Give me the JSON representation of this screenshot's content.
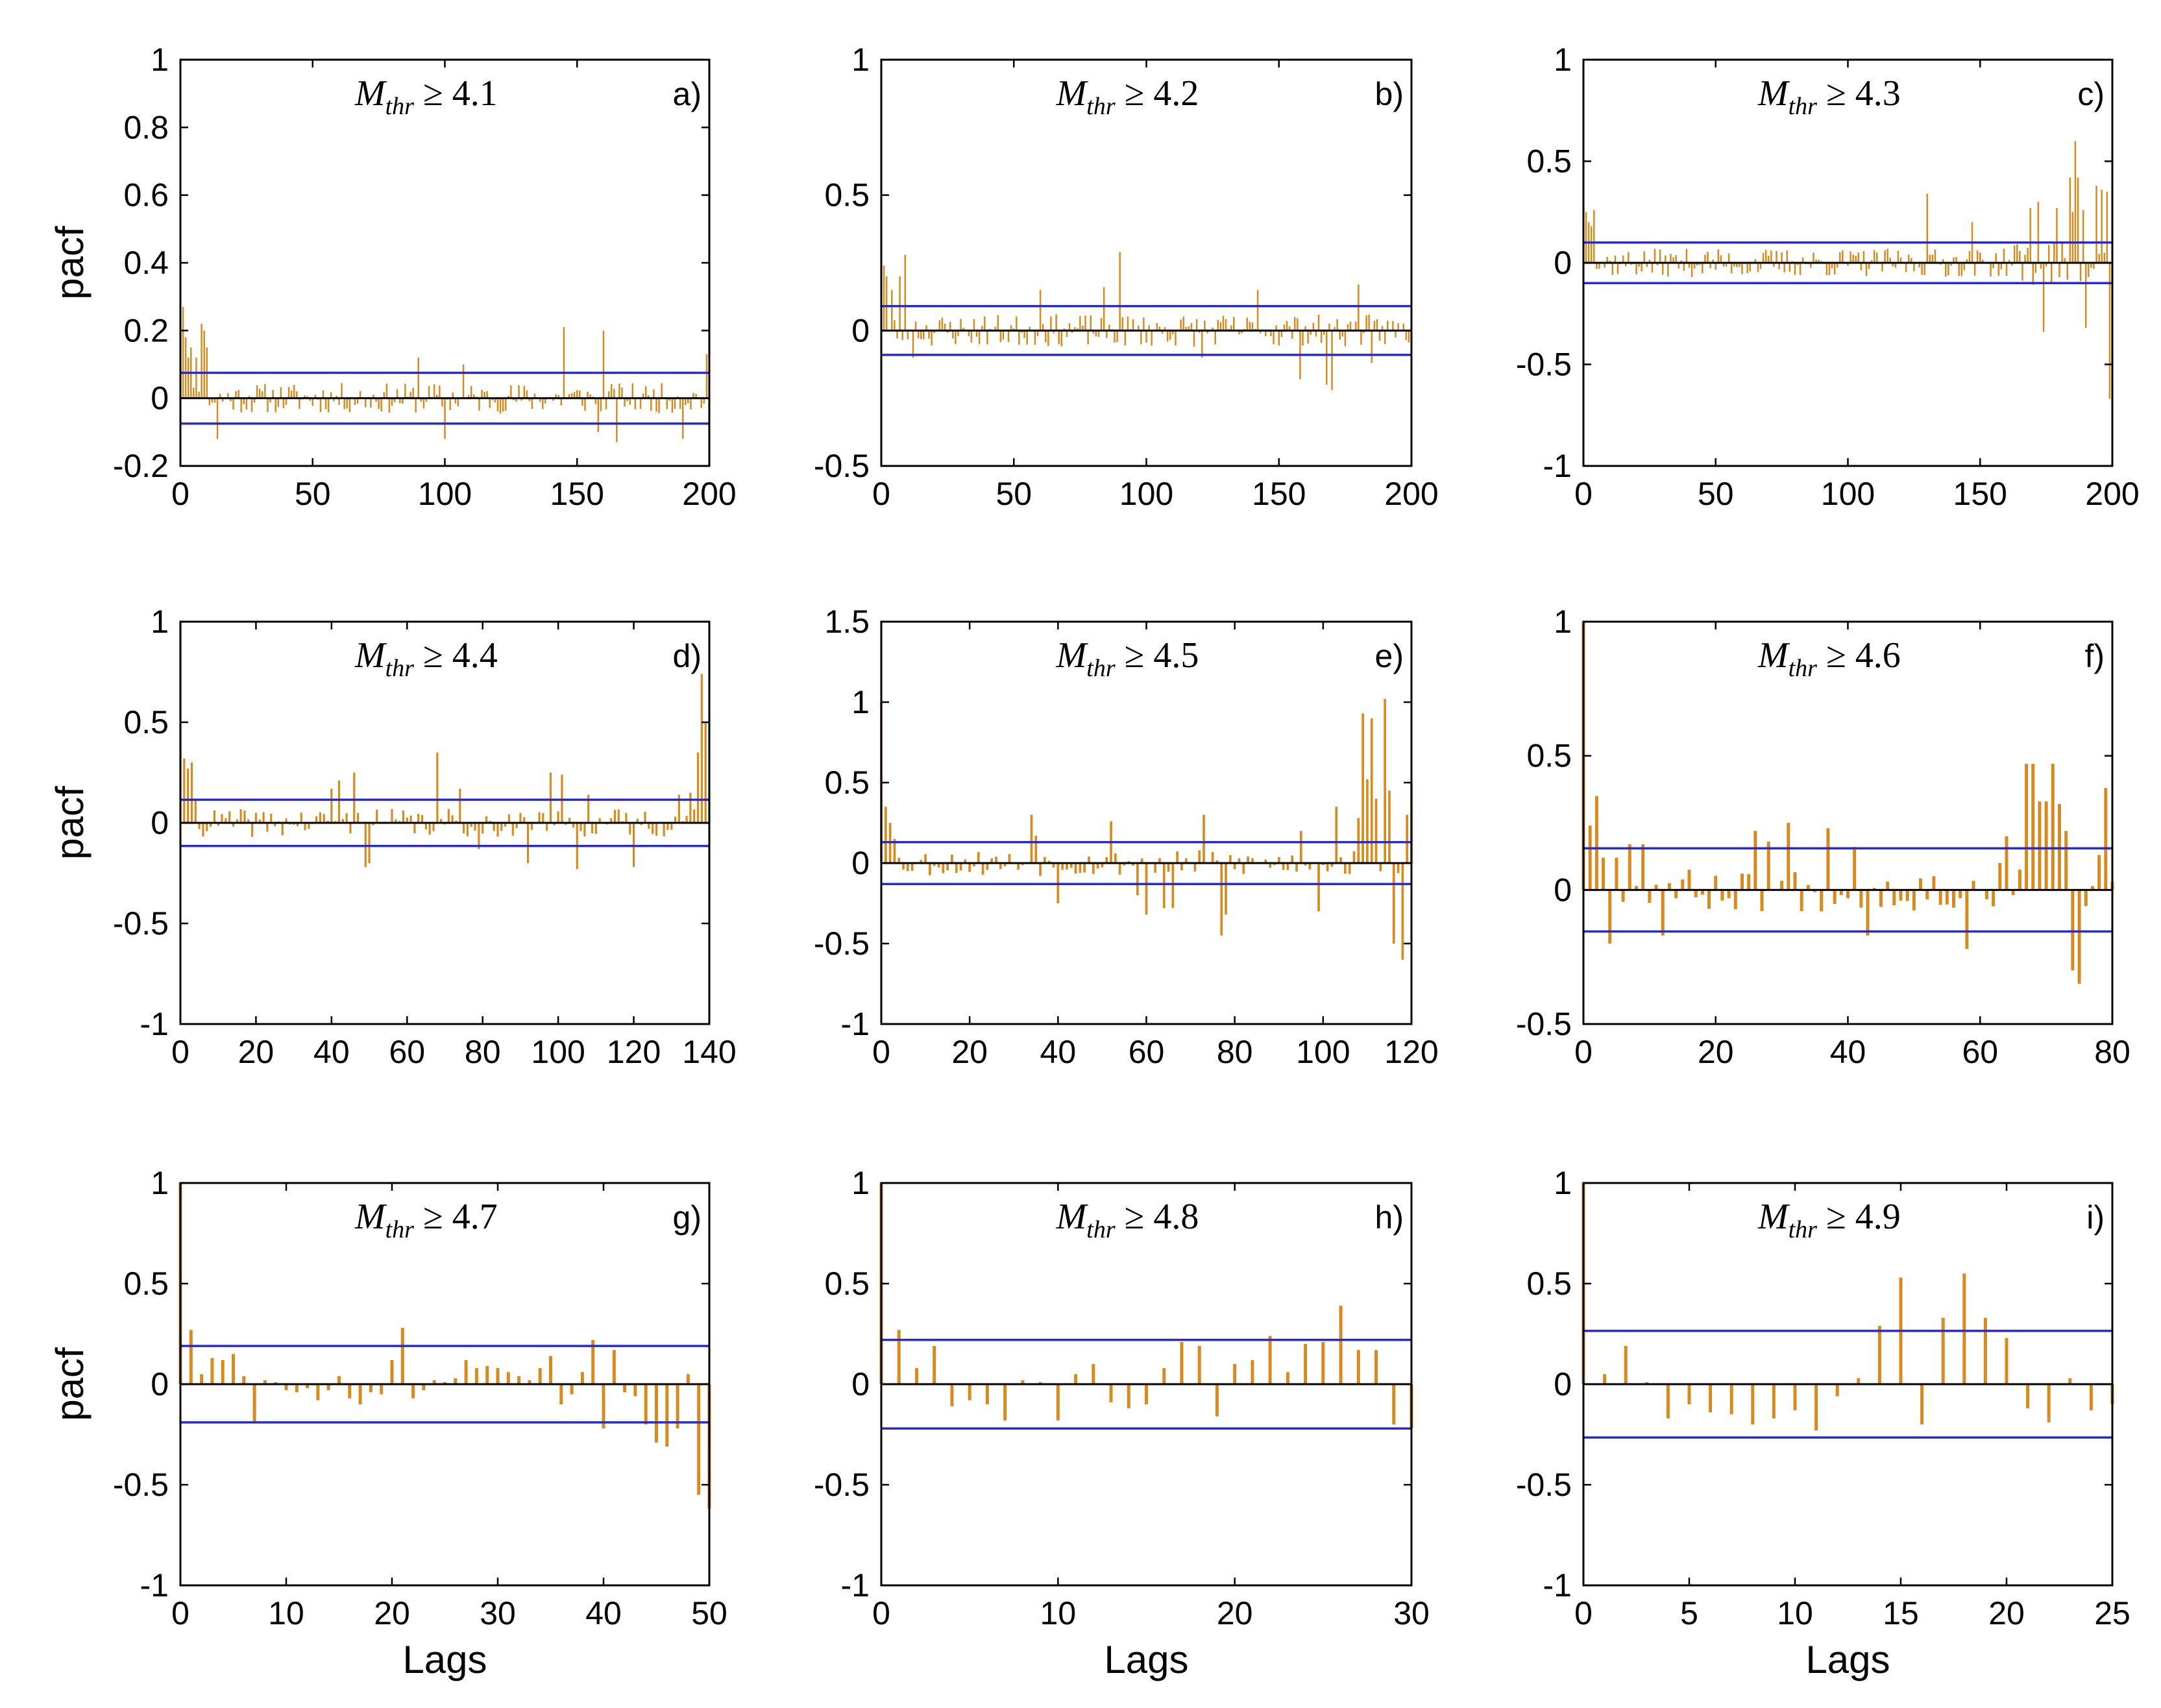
{
  "colors": {
    "bar": "#d98a1e",
    "conf": "#2a2acc",
    "axis": "#000000",
    "zero": "#000000"
  },
  "chart_data": [
    {
      "type": "bar",
      "panel": "a)",
      "title": "M_thr ≥ 4.1",
      "title_sym": "M",
      "title_sub": "thr",
      "title_rest": " ≥ 4.1",
      "ylabel": "pacf",
      "xlabel": "",
      "xlim": [
        0,
        200
      ],
      "ylim": [
        -0.2,
        1
      ],
      "xticks": [
        0,
        50,
        100,
        150,
        200
      ],
      "yticks": [
        -0.2,
        0,
        0.2,
        0.4,
        0.6,
        0.8,
        1
      ],
      "ytick_labels": [
        "-0.2",
        "0",
        "0.2",
        "0.4",
        "0.6",
        "0.8",
        "1"
      ],
      "conf": 0.075,
      "n": 200,
      "seed": 11,
      "amp": 0.045,
      "late": 0,
      "spikes": [
        [
          0,
          1
        ],
        [
          1,
          0.27
        ],
        [
          2,
          0.18
        ],
        [
          3,
          0.12
        ],
        [
          4,
          0.15
        ],
        [
          6,
          0.12
        ],
        [
          8,
          0.22
        ],
        [
          9,
          0.2
        ],
        [
          10,
          0.15
        ],
        [
          14,
          -0.12
        ],
        [
          90,
          0.12
        ],
        [
          100,
          -0.12
        ],
        [
          107,
          0.1
        ],
        [
          145,
          0.21
        ],
        [
          160,
          0.2
        ],
        [
          158,
          -0.1
        ],
        [
          165,
          -0.13
        ],
        [
          190,
          -0.12
        ],
        [
          199,
          0.13
        ]
      ]
    },
    {
      "type": "bar",
      "panel": "b)",
      "title": "M_thr ≥ 4.2",
      "title_sym": "M",
      "title_sub": "thr",
      "title_rest": " ≥ 4.2",
      "ylabel": "",
      "xlabel": "",
      "xlim": [
        0,
        200
      ],
      "ylim": [
        -0.5,
        1
      ],
      "xticks": [
        0,
        50,
        100,
        150,
        200
      ],
      "yticks": [
        -0.5,
        0,
        0.5,
        1
      ],
      "ytick_labels": [
        "-0.5",
        "0",
        "0.5",
        "1"
      ],
      "conf": 0.09,
      "n": 200,
      "seed": 23,
      "amp": 0.06,
      "late": 0,
      "spikes": [
        [
          0,
          1
        ],
        [
          1,
          0.24
        ],
        [
          2,
          0.2
        ],
        [
          4,
          0.15
        ],
        [
          7,
          0.2
        ],
        [
          9,
          0.28
        ],
        [
          12,
          -0.1
        ],
        [
          60,
          0.15
        ],
        [
          84,
          0.16
        ],
        [
          90,
          0.29
        ],
        [
          121,
          -0.1
        ],
        [
          142,
          0.15
        ],
        [
          158,
          -0.18
        ],
        [
          168,
          -0.2
        ],
        [
          170,
          -0.22
        ],
        [
          180,
          0.17
        ],
        [
          185,
          -0.12
        ]
      ]
    },
    {
      "type": "bar",
      "panel": "c)",
      "title": "M_thr ≥ 4.3",
      "title_sym": "M",
      "title_sub": "thr",
      "title_rest": " ≥ 4.3",
      "ylabel": "",
      "xlabel": "",
      "xlim": [
        0,
        200
      ],
      "ylim": [
        -1,
        1
      ],
      "xticks": [
        0,
        50,
        100,
        150,
        200
      ],
      "yticks": [
        -1,
        -0.5,
        0,
        0.5,
        1
      ],
      "ytick_labels": [
        "-1",
        "-0.5",
        "0",
        "0.5",
        "1"
      ],
      "conf": 0.1,
      "n": 200,
      "seed": 37,
      "amp": 0.07,
      "late": 1,
      "spikes": [
        [
          0,
          1
        ],
        [
          1,
          0.25
        ],
        [
          2,
          0.2
        ],
        [
          3,
          0.18
        ],
        [
          4,
          0.26
        ],
        [
          130,
          0.34
        ],
        [
          147,
          0.2
        ],
        [
          169,
          0.27
        ],
        [
          172,
          0.3
        ],
        [
          174,
          -0.34
        ],
        [
          179,
          0.27
        ],
        [
          184,
          0.42
        ],
        [
          185,
          0.25
        ],
        [
          186,
          0.6
        ],
        [
          187,
          0.42
        ],
        [
          189,
          0.26
        ],
        [
          190,
          -0.32
        ],
        [
          194,
          0.38
        ],
        [
          196,
          0.36
        ],
        [
          198,
          0.35
        ],
        [
          199,
          -0.67
        ],
        [
          200,
          0.26
        ]
      ]
    },
    {
      "type": "bar",
      "panel": "d)",
      "title": "M_thr ≥ 4.4",
      "title_sym": "M",
      "title_sub": "thr",
      "title_rest": " ≥ 4.4",
      "ylabel": "pacf",
      "xlabel": "",
      "xlim": [
        0,
        140
      ],
      "ylim": [
        -1,
        1
      ],
      "xticks": [
        0,
        20,
        40,
        60,
        80,
        100,
        120,
        140
      ],
      "yticks": [
        -1,
        -0.5,
        0,
        0.5,
        1
      ],
      "ytick_labels": [
        "-1",
        "-0.5",
        "0",
        "0.5",
        "1"
      ],
      "conf": 0.115,
      "n": 140,
      "seed": 41,
      "amp": 0.07,
      "late": 0,
      "spikes": [
        [
          0,
          1
        ],
        [
          1,
          0.32
        ],
        [
          2,
          0.27
        ],
        [
          3,
          0.3
        ],
        [
          4,
          0.12
        ],
        [
          40,
          0.17
        ],
        [
          42,
          0.21
        ],
        [
          46,
          0.25
        ],
        [
          49,
          -0.22
        ],
        [
          50,
          -0.2
        ],
        [
          68,
          0.35
        ],
        [
          74,
          0.17
        ],
        [
          79,
          -0.13
        ],
        [
          92,
          -0.2
        ],
        [
          98,
          0.25
        ],
        [
          101,
          0.24
        ],
        [
          105,
          -0.23
        ],
        [
          108,
          0.14
        ],
        [
          120,
          -0.22
        ],
        [
          132,
          0.14
        ],
        [
          135,
          0.15
        ],
        [
          137,
          0.35
        ],
        [
          138,
          0.74
        ],
        [
          139,
          0.5
        ],
        [
          140,
          0.15
        ]
      ]
    },
    {
      "type": "bar",
      "panel": "e)",
      "title": "M_thr ≥ 4.5",
      "title_sym": "M",
      "title_sub": "thr",
      "title_rest": " ≥ 4.5",
      "ylabel": "",
      "xlabel": "",
      "xlim": [
        0,
        120
      ],
      "ylim": [
        -1,
        1.5
      ],
      "xticks": [
        0,
        20,
        40,
        60,
        80,
        100,
        120
      ],
      "yticks": [
        -1,
        -0.5,
        0,
        0.5,
        1,
        1.5
      ],
      "ytick_labels": [
        "-1",
        "-0.5",
        "0",
        "0.5",
        "1",
        "1.5"
      ],
      "conf": 0.13,
      "n": 120,
      "seed": 53,
      "amp": 0.08,
      "late": 0,
      "spikes": [
        [
          0,
          1
        ],
        [
          1,
          0.35
        ],
        [
          2,
          0.25
        ],
        [
          3,
          0.15
        ],
        [
          34,
          0.3
        ],
        [
          35,
          0.17
        ],
        [
          40,
          -0.25
        ],
        [
          52,
          0.26
        ],
        [
          58,
          -0.2
        ],
        [
          60,
          -0.32
        ],
        [
          64,
          -0.28
        ],
        [
          66,
          -0.28
        ],
        [
          73,
          0.3
        ],
        [
          77,
          -0.45
        ],
        [
          78,
          -0.32
        ],
        [
          95,
          0.2
        ],
        [
          99,
          -0.3
        ],
        [
          103,
          0.35
        ],
        [
          108,
          0.28
        ],
        [
          109,
          0.93
        ],
        [
          110,
          0.52
        ],
        [
          111,
          0.9
        ],
        [
          112,
          0.4
        ],
        [
          114,
          1.02
        ],
        [
          115,
          0.45
        ],
        [
          116,
          -0.5
        ],
        [
          118,
          -0.6
        ],
        [
          119,
          0.3
        ],
        [
          120,
          0.5
        ]
      ]
    },
    {
      "type": "bar",
      "panel": "f)",
      "title": "M_thr ≥ 4.6",
      "title_sym": "M",
      "title_sub": "thr",
      "title_rest": " ≥ 4.6",
      "ylabel": "",
      "xlabel": "",
      "xlim": [
        0,
        80
      ],
      "ylim": [
        -0.5,
        1
      ],
      "xticks": [
        0,
        20,
        40,
        60,
        80
      ],
      "yticks": [
        -0.5,
        0,
        0.5,
        1
      ],
      "ytick_labels": [
        "-0.5",
        "0",
        "0.5",
        "1"
      ],
      "conf": 0.155,
      "n": 80,
      "seed": 67,
      "amp": 0.08,
      "late": 0,
      "spikes": [
        [
          0,
          1
        ],
        [
          1,
          0.24
        ],
        [
          2,
          0.35
        ],
        [
          3,
          0.12
        ],
        [
          4,
          -0.2
        ],
        [
          5,
          0.12
        ],
        [
          7,
          0.17
        ],
        [
          9,
          0.17
        ],
        [
          12,
          -0.17
        ],
        [
          26,
          0.22
        ],
        [
          28,
          0.18
        ],
        [
          31,
          0.25
        ],
        [
          37,
          0.23
        ],
        [
          41,
          0.16
        ],
        [
          43,
          -0.17
        ],
        [
          58,
          -0.22
        ],
        [
          63,
          0.1
        ],
        [
          64,
          0.2
        ],
        [
          67,
          0.47
        ],
        [
          68,
          0.47
        ],
        [
          69,
          0.33
        ],
        [
          70,
          0.33
        ],
        [
          71,
          0.47
        ],
        [
          72,
          0.32
        ],
        [
          73,
          0.22
        ],
        [
          74,
          -0.3
        ],
        [
          75,
          -0.35
        ],
        [
          78,
          0.13
        ],
        [
          79,
          0.38
        ],
        [
          80,
          0.03
        ]
      ]
    },
    {
      "type": "bar",
      "panel": "g)",
      "title": "M_thr ≥ 4.7",
      "title_sym": "M",
      "title_sub": "thr",
      "title_rest": " ≥ 4.7",
      "ylabel": "pacf",
      "xlabel": "Lags",
      "xlim": [
        0,
        50
      ],
      "ylim": [
        -1,
        1
      ],
      "xticks": [
        0,
        10,
        20,
        30,
        40,
        50
      ],
      "yticks": [
        -1,
        -0.5,
        0,
        0.5,
        1
      ],
      "ytick_labels": [
        "-1",
        "-0.5",
        "0",
        "0.5",
        "1"
      ],
      "conf": 0.19,
      "values": [
        1,
        0.27,
        0.05,
        0.13,
        0.12,
        0.15,
        0.04,
        -0.19,
        0.02,
        0.01,
        -0.03,
        -0.04,
        -0.02,
        -0.08,
        -0.03,
        0.04,
        -0.07,
        -0.1,
        -0.04,
        -0.05,
        0.12,
        0.28,
        -0.07,
        -0.03,
        0.02,
        0.01,
        0.03,
        0.12,
        0.08,
        0.09,
        0.08,
        0.06,
        0.04,
        0.02,
        0.08,
        0.14,
        -0.1,
        -0.05,
        0.06,
        0.22,
        -0.22,
        0.17,
        -0.04,
        -0.06,
        -0.2,
        -0.29,
        -0.31,
        -0.22,
        0.05,
        -0.55,
        -0.62
      ]
    },
    {
      "type": "bar",
      "panel": "h)",
      "title": "M_thr ≥ 4.8",
      "title_sym": "M",
      "title_sub": "thr",
      "title_rest": " ≥ 4.8",
      "ylabel": "",
      "xlabel": "Lags",
      "xlim": [
        0,
        30
      ],
      "ylim": [
        -1,
        1
      ],
      "xticks": [
        0,
        10,
        20,
        30
      ],
      "yticks": [
        -1,
        -0.5,
        0,
        0.5,
        1
      ],
      "ytick_labels": [
        "-1",
        "-0.5",
        "0",
        "0.5",
        "1"
      ],
      "conf": 0.22,
      "values": [
        1,
        0.27,
        0.08,
        0.19,
        -0.11,
        -0.08,
        -0.1,
        -0.18,
        0.02,
        0.01,
        -0.18,
        0.05,
        0.1,
        -0.09,
        -0.12,
        -0.1,
        0.08,
        0.21,
        0.19,
        -0.16,
        0.1,
        0.12,
        0.24,
        0.06,
        0.2,
        0.21,
        0.39,
        0.17,
        0.17,
        -0.2,
        -0.22
      ]
    },
    {
      "type": "bar",
      "panel": "i)",
      "title": "M_thr ≥ 4.9",
      "title_sym": "M",
      "title_sub": "thr",
      "title_rest": " ≥ 4.9",
      "ylabel": "",
      "xlabel": "Lags",
      "xlim": [
        0,
        25
      ],
      "ylim": [
        -1,
        1
      ],
      "xticks": [
        0,
        5,
        10,
        15,
        20,
        25
      ],
      "yticks": [
        -1,
        -0.5,
        0,
        0.5,
        1
      ],
      "ytick_labels": [
        "-1",
        "-0.5",
        "0",
        "0.5",
        "1"
      ],
      "conf": 0.265,
      "values": [
        1,
        0.05,
        0.19,
        0.01,
        -0.17,
        -0.1,
        -0.14,
        -0.15,
        -0.2,
        -0.17,
        -0.13,
        -0.23,
        -0.06,
        0.03,
        0.29,
        0.53,
        -0.2,
        0.33,
        0.55,
        0.33,
        0.23,
        -0.12,
        -0.19,
        0.03,
        -0.13,
        -0.1
      ]
    }
  ]
}
